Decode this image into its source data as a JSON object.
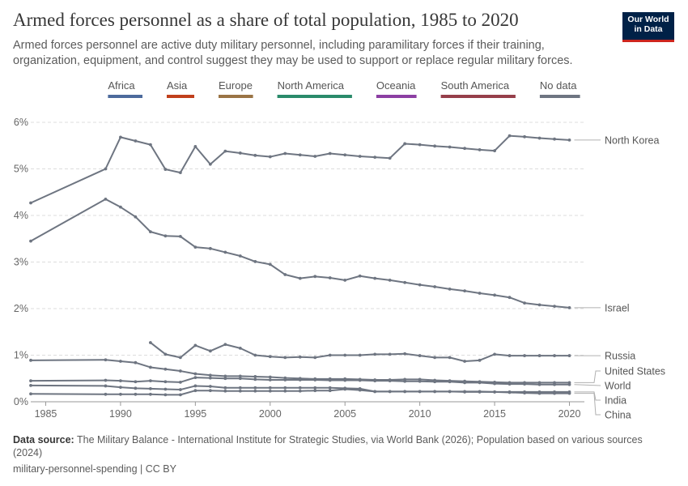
{
  "header": {
    "title": "Armed forces personnel as a share of total population, 1985 to 2020",
    "subtitle": "Armed forces personnel are active duty military personnel, including paramilitary forces if their training, organization, equipment, and control suggest they may be used to support or replace regular military forces."
  },
  "logo": {
    "line1": "Our World",
    "line2": "in Data"
  },
  "footer": {
    "source_label": "Data source:",
    "source_text": "The Military Balance - International Institute for Strategic Studies, via World Bank (2026); Population based on various sources (2024)",
    "slug": "military-personnel-spending | CC BY"
  },
  "colors": {
    "line": "#6e7581",
    "grid": "#dddddd",
    "axis_text": "#666666",
    "label_text": "#555555"
  },
  "chart_data": {
    "type": "line",
    "xlim": [
      1984,
      2021
    ],
    "ylim": [
      0,
      6
    ],
    "x_ticks": [
      1985,
      1990,
      1995,
      2000,
      2005,
      2010,
      2015,
      2020
    ],
    "y_ticks": [
      {
        "value": 0,
        "label": "0%"
      },
      {
        "value": 1,
        "label": "1%"
      },
      {
        "value": 2,
        "label": "2%"
      },
      {
        "value": 3,
        "label": "3%"
      },
      {
        "value": 4,
        "label": "4%"
      },
      {
        "value": 5,
        "label": "5%"
      },
      {
        "value": 6,
        "label": "6%"
      }
    ],
    "grid": true,
    "legend_position": "top",
    "legend": [
      {
        "name": "Africa",
        "color": "#4c6a9c"
      },
      {
        "name": "Asia",
        "color": "#c1401c"
      },
      {
        "name": "Europe",
        "color": "#9a7445"
      },
      {
        "name": "North America",
        "color": "#2a8a6a"
      },
      {
        "name": "Oceania",
        "color": "#8c3fa3"
      },
      {
        "name": "South America",
        "color": "#963f4a"
      },
      {
        "name": "No data",
        "color": "#6e7581"
      }
    ],
    "series": [
      {
        "name": "North Korea",
        "x": [
          1984,
          1989,
          1990,
          1991,
          1992,
          1993,
          1994,
          1995,
          1996,
          1997,
          1998,
          1999,
          2000,
          2001,
          2002,
          2003,
          2004,
          2005,
          2006,
          2007,
          2008,
          2009,
          2010,
          2011,
          2012,
          2013,
          2014,
          2015,
          2016,
          2017,
          2018,
          2019,
          2020
        ],
        "y": [
          4.27,
          5.0,
          5.68,
          5.6,
          5.52,
          4.99,
          4.92,
          5.48,
          5.1,
          5.38,
          5.34,
          5.29,
          5.26,
          5.33,
          5.3,
          5.27,
          5.33,
          5.3,
          5.27,
          5.25,
          5.23,
          5.54,
          5.52,
          5.49,
          5.47,
          5.44,
          5.41,
          5.39,
          5.71,
          5.69,
          5.66,
          5.64,
          5.62
        ]
      },
      {
        "name": "Israel",
        "x": [
          1984,
          1989,
          1990,
          1991,
          1992,
          1993,
          1994,
          1995,
          1996,
          1997,
          1998,
          1999,
          2000,
          2001,
          2002,
          2003,
          2004,
          2005,
          2006,
          2007,
          2008,
          2009,
          2010,
          2011,
          2012,
          2013,
          2014,
          2015,
          2016,
          2017,
          2018,
          2019,
          2020
        ],
        "y": [
          3.45,
          4.35,
          4.18,
          3.97,
          3.65,
          3.56,
          3.55,
          3.32,
          3.29,
          3.21,
          3.13,
          3.01,
          2.95,
          2.73,
          2.65,
          2.69,
          2.66,
          2.61,
          2.7,
          2.65,
          2.61,
          2.56,
          2.51,
          2.47,
          2.42,
          2.38,
          2.33,
          2.29,
          2.24,
          2.12,
          2.08,
          2.05,
          2.02
        ]
      },
      {
        "name": "Russia",
        "x": [
          1992,
          1993,
          1994,
          1995,
          1996,
          1997,
          1998,
          1999,
          2000,
          2001,
          2002,
          2003,
          2004,
          2005,
          2006,
          2007,
          2008,
          2009,
          2010,
          2011,
          2012,
          2013,
          2014,
          2015,
          2016,
          2017,
          2018,
          2019,
          2020
        ],
        "y": [
          1.27,
          1.02,
          0.95,
          1.21,
          1.09,
          1.23,
          1.15,
          1.0,
          0.97,
          0.95,
          0.96,
          0.95,
          1.0,
          1.0,
          1.0,
          1.02,
          1.02,
          1.03,
          0.99,
          0.95,
          0.95,
          0.87,
          0.89,
          1.02,
          0.99,
          0.99,
          0.99,
          0.99,
          0.99
        ]
      },
      {
        "name": "United States",
        "x": [
          1984,
          1989,
          1990,
          1991,
          1992,
          1993,
          1994,
          1995,
          1996,
          1997,
          1998,
          1999,
          2000,
          2001,
          2002,
          2003,
          2004,
          2005,
          2006,
          2007,
          2008,
          2009,
          2010,
          2011,
          2012,
          2013,
          2014,
          2015,
          2016,
          2017,
          2018,
          2019,
          2020
        ],
        "y": [
          0.89,
          0.9,
          0.87,
          0.84,
          0.74,
          0.7,
          0.66,
          0.6,
          0.57,
          0.55,
          0.55,
          0.54,
          0.53,
          0.51,
          0.5,
          0.49,
          0.49,
          0.49,
          0.48,
          0.47,
          0.47,
          0.48,
          0.48,
          0.46,
          0.45,
          0.44,
          0.43,
          0.42,
          0.41,
          0.41,
          0.41,
          0.41,
          0.41
        ]
      },
      {
        "name": "World",
        "x": [
          1984,
          1989,
          1990,
          1991,
          1992,
          1993,
          1994,
          1995,
          1996,
          1997,
          1998,
          1999,
          2000,
          2001,
          2002,
          2003,
          2004,
          2005,
          2006,
          2007,
          2008,
          2009,
          2010,
          2011,
          2012,
          2013,
          2014,
          2015,
          2016,
          2017,
          2018,
          2019,
          2020
        ],
        "y": [
          0.45,
          0.46,
          0.45,
          0.43,
          0.45,
          0.43,
          0.42,
          0.52,
          0.51,
          0.5,
          0.5,
          0.48,
          0.47,
          0.47,
          0.47,
          0.47,
          0.46,
          0.46,
          0.46,
          0.45,
          0.45,
          0.44,
          0.44,
          0.43,
          0.43,
          0.41,
          0.41,
          0.39,
          0.38,
          0.38,
          0.37,
          0.37,
          0.37
        ]
      },
      {
        "name": "India",
        "x": [
          1984,
          1989,
          1990,
          1991,
          1992,
          1993,
          1994,
          1995,
          1996,
          1997,
          1998,
          1999,
          2000,
          2001,
          2002,
          2003,
          2004,
          2005,
          2006,
          2007,
          2008,
          2009,
          2010,
          2011,
          2012,
          2013,
          2014,
          2015,
          2016,
          2017,
          2018,
          2019,
          2020
        ],
        "y": [
          0.35,
          0.34,
          0.31,
          0.29,
          0.28,
          0.27,
          0.26,
          0.34,
          0.33,
          0.3,
          0.3,
          0.3,
          0.3,
          0.3,
          0.3,
          0.3,
          0.3,
          0.29,
          0.28,
          0.22,
          0.22,
          0.22,
          0.22,
          0.22,
          0.22,
          0.22,
          0.22,
          0.21,
          0.21,
          0.21,
          0.21,
          0.21,
          0.21
        ]
      },
      {
        "name": "China",
        "x": [
          1984,
          1989,
          1990,
          1991,
          1992,
          1993,
          1994,
          1995,
          1996,
          1997,
          1998,
          1999,
          2000,
          2001,
          2002,
          2003,
          2004,
          2005,
          2006,
          2007,
          2008,
          2009,
          2010,
          2011,
          2012,
          2013,
          2014,
          2015,
          2016,
          2017,
          2018,
          2019,
          2020
        ],
        "y": [
          0.17,
          0.16,
          0.16,
          0.16,
          0.16,
          0.15,
          0.15,
          0.24,
          0.24,
          0.23,
          0.23,
          0.23,
          0.23,
          0.23,
          0.23,
          0.24,
          0.24,
          0.27,
          0.25,
          0.22,
          0.22,
          0.22,
          0.22,
          0.22,
          0.22,
          0.21,
          0.21,
          0.21,
          0.2,
          0.19,
          0.18,
          0.18,
          0.18
        ]
      }
    ],
    "end_labels": [
      {
        "text": "North Korea",
        "series": "North Korea"
      },
      {
        "text": "Israel",
        "series": "Israel"
      },
      {
        "text": "Russia",
        "series": "Russia"
      },
      {
        "text": "United States",
        "series": "United States"
      },
      {
        "text": "World",
        "series": "World"
      },
      {
        "text": "India",
        "series": "India"
      },
      {
        "text": "China",
        "series": "China"
      }
    ]
  }
}
